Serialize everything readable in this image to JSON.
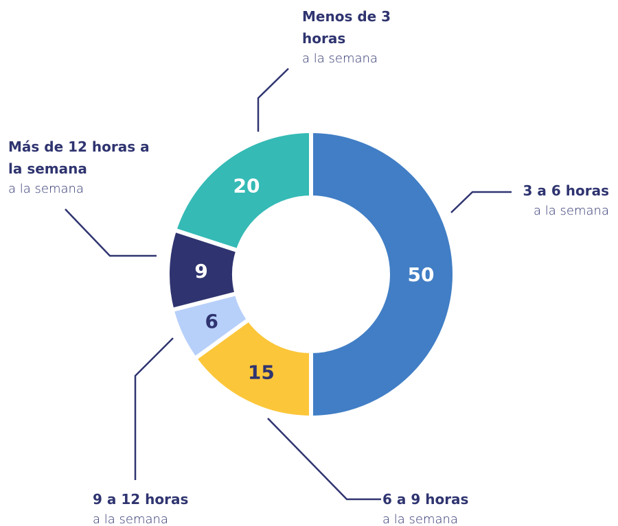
{
  "chart_data": {
    "type": "donut",
    "categories": [
      "3 a 6 horas",
      "6 a 9 horas",
      "9 a 12 horas",
      "Más de 12 horas a la semana",
      "Menos de 3 horas"
    ],
    "sublabels": [
      "a la semana",
      "a la semana",
      "a la semana",
      "a la semana",
      "a la semana"
    ],
    "values": [
      50,
      15,
      6,
      9,
      20
    ],
    "colors": [
      "#417ec5",
      "#fcc63a",
      "#b7d0fa",
      "#2f3470",
      "#35bab5"
    ]
  }
}
